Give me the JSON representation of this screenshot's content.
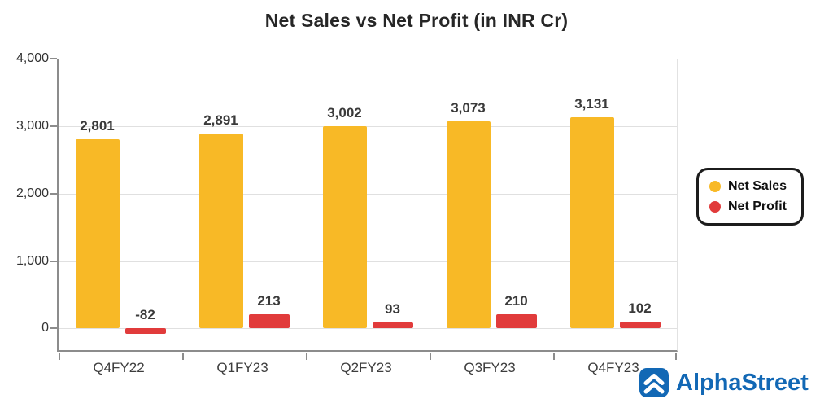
{
  "chart_data": {
    "type": "bar",
    "title": "Net Sales vs Net Profit (in INR Cr)",
    "categories": [
      "Q4FY22",
      "Q1FY23",
      "Q2FY23",
      "Q3FY23",
      "Q4FY23"
    ],
    "series": [
      {
        "name": "Net Sales",
        "color": "#F8B926",
        "values": [
          2801,
          2891,
          3002,
          3073,
          3131
        ]
      },
      {
        "name": "Net Profit",
        "color": "#E13B3B",
        "values": [
          -82,
          213,
          93,
          210,
          102
        ]
      }
    ],
    "xlabel": "",
    "ylabel": "",
    "ylim": [
      -320,
      4000
    ],
    "yticks": [
      0,
      1000,
      2000,
      3000,
      4000
    ],
    "grid": true,
    "legend_position": "right"
  },
  "brand": {
    "name": "AlphaStreet",
    "color": "#1268B5"
  }
}
